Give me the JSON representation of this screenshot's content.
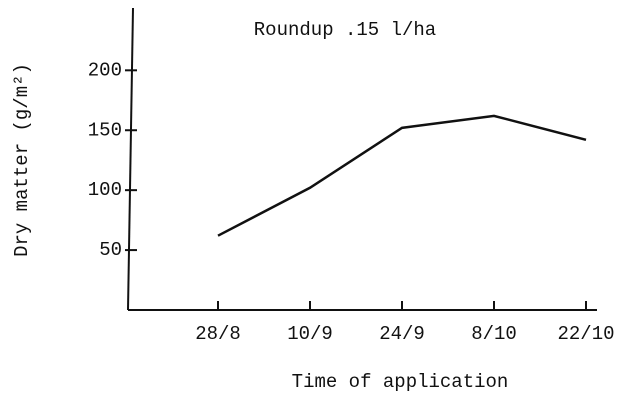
{
  "chart_data": {
    "type": "line",
    "title": "Roundup .15 l/ha",
    "xlabel": "Time of application",
    "ylabel": "Dry matter (g/m²)",
    "categories": [
      "28/8",
      "10/9",
      "24/9",
      "8/10",
      "22/10"
    ],
    "values": [
      62,
      102,
      152,
      162,
      142
    ],
    "color": "#111111",
    "ylim": [
      0,
      252
    ],
    "yticks": [
      50,
      100,
      150,
      200
    ]
  }
}
